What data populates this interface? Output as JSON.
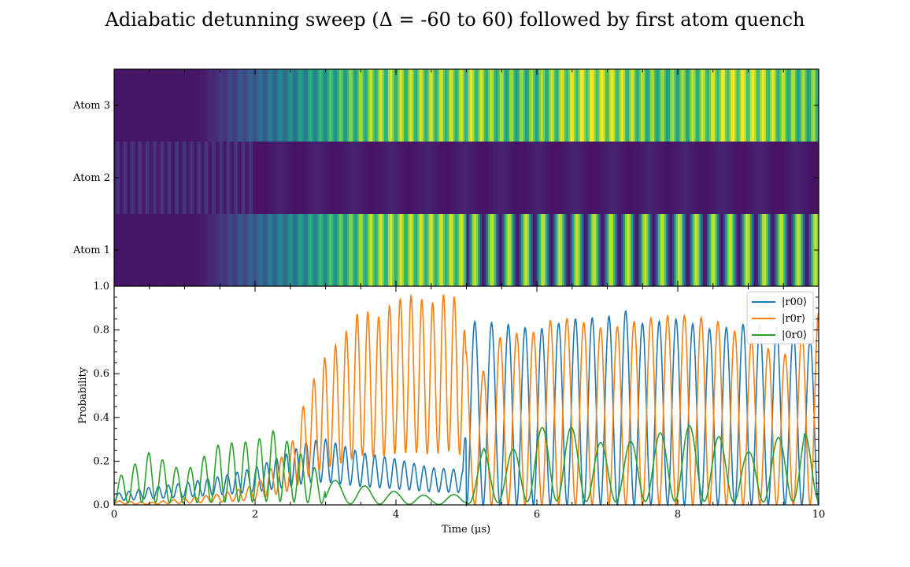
{
  "figure": {
    "title": "Adiabatic detunning sweep (Δ = -60 to 60) followed by first atom quench"
  },
  "chart_data": [
    {
      "type": "heatmap",
      "rows": [
        "Atom 3",
        "Atom 2",
        "Atom 1"
      ],
      "xlim": [
        0,
        10
      ],
      "colormap": "viridis",
      "value_range": [
        0,
        1
      ],
      "quench_time": 5.0,
      "row_profiles": {
        "Atom 1": "oscillating occupation growing to ~0.7-0.9 by t≈3.5, then fast high-contrast oscillation (0-0.9) after the quench at t≈5",
        "Atom 2": "low occupation (<0.15) throughout",
        "Atom 3": "oscillating occupation growing to ~0.7-0.9 by t≈3.5, staying high with slow modulation after t≈5"
      }
    },
    {
      "type": "line",
      "xlabel": "Time (μs)",
      "ylabel": "Probability",
      "xlim": [
        0,
        10
      ],
      "ylim": [
        0,
        1.0
      ],
      "xticks": [
        0,
        2,
        4,
        6,
        8,
        10
      ],
      "yticks": [
        0.0,
        0.2,
        0.4,
        0.6,
        0.8,
        1.0
      ],
      "ytick_labels": [
        "0.0",
        "0.2",
        "0.4",
        "0.6",
        "0.8",
        "1.0"
      ],
      "legend_position": "top-right",
      "series": [
        {
          "name": "|r00⟩",
          "color": "#1f77b4",
          "x": [
            0,
            0.5,
            1.0,
            1.5,
            2.0,
            2.5,
            2.75,
            3.0,
            3.5,
            4.0,
            4.5,
            4.95,
            5.05,
            5.5,
            6.0,
            6.5,
            7.0,
            7.25,
            7.5,
            8.0,
            8.5,
            9.0,
            9.5,
            10.0
          ],
          "y": [
            0.05,
            0.08,
            0.1,
            0.13,
            0.17,
            0.24,
            0.29,
            0.3,
            0.24,
            0.21,
            0.17,
            0.16,
            0.84,
            0.83,
            0.8,
            0.85,
            0.86,
            0.89,
            0.83,
            0.85,
            0.8,
            0.83,
            0.81,
            0.74
          ]
        },
        {
          "name": "|r0r⟩",
          "color": "#ff7f0e",
          "x": [
            0,
            0.5,
            1.0,
            1.5,
            2.0,
            2.5,
            2.75,
            3.0,
            3.25,
            3.5,
            3.75,
            4.0,
            4.25,
            4.5,
            4.75,
            4.95,
            5.05,
            5.5,
            6.0,
            6.25,
            6.5,
            7.0,
            7.5,
            8.0,
            8.5,
            9.0,
            9.5,
            10.0
          ],
          "y": [
            0.02,
            0.01,
            0.03,
            0.05,
            0.09,
            0.26,
            0.52,
            0.68,
            0.77,
            0.9,
            0.86,
            0.94,
            0.96,
            0.92,
            0.98,
            0.91,
            0.49,
            0.78,
            0.79,
            0.86,
            0.85,
            0.8,
            0.85,
            0.87,
            0.85,
            0.76,
            0.68,
            0.88
          ]
        },
        {
          "name": "|0r0⟩",
          "color": "#2ca02c",
          "x": [
            0,
            0.5,
            1.0,
            1.5,
            2.0,
            2.25,
            2.5,
            3.0,
            3.5,
            4.0,
            4.5,
            4.95,
            5.25,
            5.5,
            6.0,
            6.4,
            7.0,
            7.5,
            8.1,
            8.6,
            9.0,
            9.5,
            9.8,
            10.0
          ],
          "y": [
            0.11,
            0.24,
            0.15,
            0.28,
            0.29,
            0.34,
            0.28,
            0.12,
            0.09,
            0.06,
            0.04,
            0.05,
            0.26,
            0.21,
            0.35,
            0.37,
            0.27,
            0.3,
            0.37,
            0.31,
            0.24,
            0.32,
            0.36,
            0.05
          ]
        }
      ]
    }
  ]
}
